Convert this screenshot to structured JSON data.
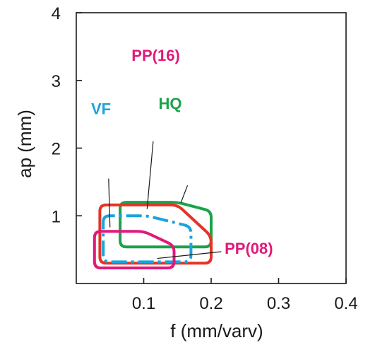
{
  "chart_data": {
    "type": "area",
    "title": "",
    "xlabel": "f (mm/varv)",
    "ylabel": "ap (mm)",
    "xlim": [
      0,
      0.4
    ],
    "ylim": [
      0,
      4
    ],
    "x_ticks": [
      {
        "value": 0.1,
        "label": "0.1"
      },
      {
        "value": 0.2,
        "label": "0.2"
      },
      {
        "value": 0.3,
        "label": "0.3"
      },
      {
        "value": 0.4,
        "label": "0.4"
      }
    ],
    "y_ticks": [
      {
        "value": 1,
        "label": "1"
      },
      {
        "value": 2,
        "label": "2"
      },
      {
        "value": 3,
        "label": "3"
      },
      {
        "value": 4,
        "label": "4"
      }
    ],
    "grid": false,
    "series": [
      {
        "name": "HQ",
        "color": "#1aa34a",
        "dashed": false,
        "points": [
          [
            0.065,
            1.2
          ],
          [
            0.15,
            1.2
          ],
          [
            0.2,
            1.07
          ],
          [
            0.2,
            0.54
          ],
          [
            0.065,
            0.54
          ]
        ],
        "label_anchor": [
          0.122,
          2.58
        ],
        "leader": [
          [
            0.165,
            1.45
          ],
          [
            0.155,
            1.19
          ]
        ]
      },
      {
        "name": "PP(16)",
        "color": "#e0197a",
        "dashed": false,
        "points": [
          [
            0.035,
            1.16
          ],
          [
            0.15,
            1.16
          ],
          [
            0.2,
            0.7
          ],
          [
            0.2,
            0.3
          ],
          [
            0.035,
            0.3
          ]
        ],
        "label_anchor": [
          0.082,
          3.29
        ],
        "leader": [
          [
            0.114,
            2.1
          ],
          [
            0.105,
            1.1
          ]
        ],
        "line_color": "#e63324"
      },
      {
        "name": "VF",
        "color": "#1ba3dc",
        "dashed": true,
        "points": [
          [
            0.04,
            1.0
          ],
          [
            0.105,
            1.0
          ],
          [
            0.17,
            0.84
          ],
          [
            0.17,
            0.32
          ],
          [
            0.04,
            0.32
          ]
        ],
        "label_anchor": [
          0.022,
          2.5
        ],
        "leader": [
          [
            0.048,
            1.55
          ],
          [
            0.05,
            0.83
          ]
        ]
      },
      {
        "name": "PP(08)",
        "color": "#e0197a",
        "dashed": false,
        "points": [
          [
            0.027,
            0.77
          ],
          [
            0.1,
            0.77
          ],
          [
            0.145,
            0.56
          ],
          [
            0.145,
            0.23
          ],
          [
            0.027,
            0.23
          ]
        ],
        "label_anchor": [
          0.22,
          0.44
        ],
        "leader": [
          [
            0.215,
            0.47
          ],
          [
            0.12,
            0.37
          ]
        ]
      }
    ]
  }
}
